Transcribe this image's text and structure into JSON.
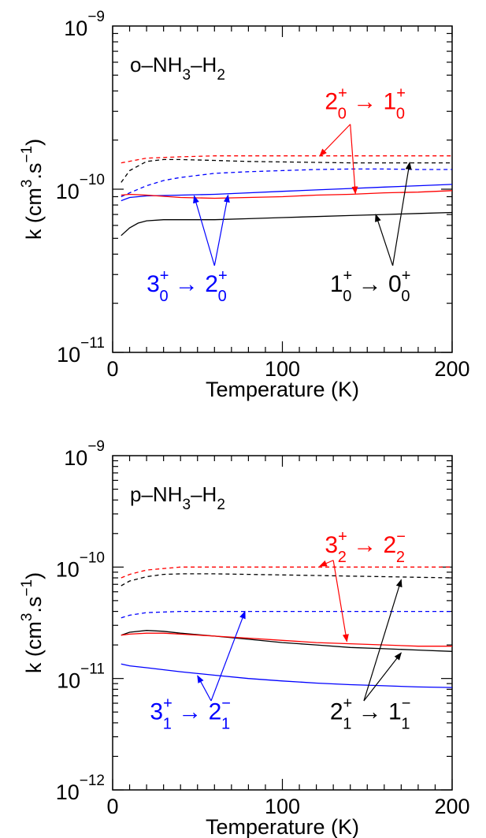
{
  "chart_data": [
    {
      "type": "line",
      "system_label": {
        "base": "o–NH",
        "sub1": "3",
        "mid": "–H",
        "sub2": "2"
      },
      "xlabel": "Temperature (K)",
      "ylabel": {
        "pre": "k (cm",
        "sup1": "3",
        "mid": ".s",
        "sup2": "−1",
        "post": ")"
      },
      "xlim": [
        0,
        200
      ],
      "ylim": [
        1e-11,
        1e-09
      ],
      "yscale": "log",
      "x_ticks": [
        {
          "v": 0,
          "label": "0"
        },
        {
          "v": 100,
          "label": "100"
        },
        {
          "v": 200,
          "label": "200"
        }
      ],
      "y_ticks": [
        {
          "v": 1e-11,
          "base": "10",
          "exp": "−11"
        },
        {
          "v": 1e-10,
          "base": "10",
          "exp": "−10"
        },
        {
          "v": 1e-09,
          "base": "10",
          "exp": "−9"
        }
      ],
      "series": [
        {
          "color": "#ff0000",
          "dash": true,
          "x": [
            5,
            20,
            40,
            60,
            80,
            100,
            120,
            140,
            160,
            180,
            200
          ],
          "y": [
            1.45e-10,
            1.55e-10,
            1.58e-10,
            1.6e-10,
            1.6e-10,
            1.6e-10,
            1.6e-10,
            1.6e-10,
            1.6e-10,
            1.6e-10,
            1.6e-10
          ]
        },
        {
          "color": "#000000",
          "dash": true,
          "x": [
            5,
            10,
            20,
            30,
            40,
            60,
            80,
            100,
            120,
            140,
            160,
            180,
            200
          ],
          "y": [
            1.1e-10,
            1.3e-10,
            1.48e-10,
            1.52e-10,
            1.52e-10,
            1.5e-10,
            1.48e-10,
            1.47e-10,
            1.46e-10,
            1.45e-10,
            1.45e-10,
            1.45e-10,
            1.45e-10
          ]
        },
        {
          "color": "#0000ff",
          "dash": true,
          "x": [
            5,
            10,
            20,
            30,
            40,
            60,
            80,
            100,
            120,
            140,
            160,
            180,
            200
          ],
          "y": [
            9e-11,
            9.5e-11,
            1.05e-10,
            1.13e-10,
            1.18e-10,
            1.25e-10,
            1.28e-10,
            1.3e-10,
            1.32e-10,
            1.33e-10,
            1.33e-10,
            1.32e-10,
            1.32e-10
          ]
        },
        {
          "color": "#0000ff",
          "dash": false,
          "x": [
            5,
            10,
            20,
            40,
            60,
            80,
            100,
            120,
            140,
            160,
            180,
            200
          ],
          "y": [
            8.5e-11,
            8.9e-11,
            9.1e-11,
            9.2e-11,
            9.3e-11,
            9.5e-11,
            9.7e-11,
            9.9e-11,
            1.01e-10,
            1.03e-10,
            1.05e-10,
            1.07e-10
          ]
        },
        {
          "color": "#ff0000",
          "dash": false,
          "x": [
            5,
            10,
            20,
            40,
            60,
            80,
            100,
            120,
            140,
            160,
            180,
            200
          ],
          "y": [
            9.2e-11,
            9.3e-11,
            9.2e-11,
            8.9e-11,
            8.8e-11,
            8.9e-11,
            9e-11,
            9.2e-11,
            9.3e-11,
            9.5e-11,
            9.6e-11,
            9.8e-11
          ]
        },
        {
          "color": "#000000",
          "dash": false,
          "x": [
            5,
            10,
            15,
            20,
            30,
            40,
            60,
            80,
            100,
            120,
            140,
            160,
            180,
            200
          ],
          "y": [
            5.2e-11,
            5.8e-11,
            6.2e-11,
            6.4e-11,
            6.5e-11,
            6.5e-11,
            6.5e-11,
            6.6e-11,
            6.7e-11,
            6.8e-11,
            6.9e-11,
            7e-11,
            7.1e-11,
            7.2e-11
          ]
        }
      ],
      "annotations": [
        {
          "color": "#ff0000",
          "base1": "2",
          "sup1": "+",
          "sub1": "0",
          "base2": "1",
          "sup2": "+",
          "sub2": "0",
          "pos": [
            125,
            3.1e-10
          ],
          "arrows": [
            {
              "from": [
                140,
                2.5e-10
              ],
              "to": [
                122,
                1.6e-10
              ]
            },
            {
              "from": [
                140,
                2.5e-10
              ],
              "to": [
                143,
                9.4e-11
              ]
            }
          ]
        },
        {
          "color": "#0000ff",
          "base1": "3",
          "sup1": "+",
          "sub1": "0",
          "base2": "2",
          "sup2": "+",
          "sub2": "0",
          "pos": [
            20,
            2.35e-11
          ],
          "arrows": [
            {
              "from": [
                60,
                3.4e-11
              ],
              "to": [
                48,
                9.1e-11
              ]
            },
            {
              "from": [
                60,
                3.4e-11
              ],
              "to": [
                68,
                9.2e-11
              ]
            }
          ]
        },
        {
          "color": "#000000",
          "base1": "1",
          "sup1": "+",
          "sub1": "0",
          "base2": "0",
          "sup2": "+",
          "sub2": "0",
          "pos": [
            128,
            2.35e-11
          ],
          "arrows": [
            {
              "from": [
                165,
                3.4e-11
              ],
              "to": [
                175,
                1.46e-10
              ]
            },
            {
              "from": [
                165,
                3.4e-11
              ],
              "to": [
                155,
                7e-11
              ]
            }
          ]
        }
      ]
    },
    {
      "type": "line",
      "system_label": {
        "base": "p–NH",
        "sub1": "3",
        "mid": "–H",
        "sub2": "2"
      },
      "xlabel": "Temperature (K)",
      "ylabel": {
        "pre": "k (cm",
        "sup1": "3",
        "mid": ".s",
        "sup2": "−1",
        "post": ")"
      },
      "xlim": [
        0,
        200
      ],
      "ylim": [
        1e-12,
        1e-09
      ],
      "yscale": "log",
      "x_ticks": [
        {
          "v": 0,
          "label": "0"
        },
        {
          "v": 100,
          "label": "100"
        },
        {
          "v": 200,
          "label": "200"
        }
      ],
      "y_ticks": [
        {
          "v": 1e-12,
          "base": "10",
          "exp": "−12"
        },
        {
          "v": 1e-11,
          "base": "10",
          "exp": "−11"
        },
        {
          "v": 1e-10,
          "base": "10",
          "exp": "−10"
        },
        {
          "v": 1e-09,
          "base": "10",
          "exp": "−9"
        }
      ],
      "series": [
        {
          "color": "#ff0000",
          "dash": true,
          "x": [
            5,
            10,
            20,
            40,
            60,
            80,
            100,
            120,
            140,
            160,
            180,
            200
          ],
          "y": [
            8e-11,
            8.6e-11,
            9.4e-11,
            1e-10,
            1e-10,
            1e-10,
            1e-10,
            1e-10,
            1e-10,
            1e-10,
            1e-10,
            1e-10
          ]
        },
        {
          "color": "#000000",
          "dash": true,
          "x": [
            5,
            10,
            20,
            30,
            40,
            60,
            80,
            100,
            120,
            140,
            160,
            180,
            200
          ],
          "y": [
            6.8e-11,
            7.5e-11,
            8.2e-11,
            8.6e-11,
            8.7e-11,
            8.7e-11,
            8.6e-11,
            8.5e-11,
            8.4e-11,
            8.3e-11,
            8.2e-11,
            8.1e-11,
            8e-11
          ]
        },
        {
          "color": "#0000ff",
          "dash": true,
          "x": [
            5,
            10,
            20,
            40,
            60,
            80,
            100,
            120,
            140,
            160,
            180,
            200
          ],
          "y": [
            3.5e-11,
            3.7e-11,
            3.9e-11,
            4e-11,
            4e-11,
            4e-11,
            4e-11,
            4e-11,
            4e-11,
            4e-11,
            4e-11,
            4e-11
          ]
        },
        {
          "color": "#000000",
          "dash": false,
          "x": [
            5,
            10,
            20,
            30,
            40,
            60,
            80,
            100,
            120,
            140,
            160,
            180,
            200
          ],
          "y": [
            2.45e-11,
            2.6e-11,
            2.7e-11,
            2.65e-11,
            2.55e-11,
            2.4e-11,
            2.25e-11,
            2.1e-11,
            2e-11,
            1.9e-11,
            1.85e-11,
            1.8e-11,
            1.75e-11
          ]
        },
        {
          "color": "#ff0000",
          "dash": false,
          "x": [
            5,
            10,
            20,
            30,
            40,
            60,
            80,
            100,
            120,
            140,
            160,
            180,
            200
          ],
          "y": [
            2.45e-11,
            2.5e-11,
            2.55e-11,
            2.55e-11,
            2.5e-11,
            2.4e-11,
            2.3e-11,
            2.2e-11,
            2.1e-11,
            2.05e-11,
            2e-11,
            1.95e-11,
            1.95e-11
          ]
        },
        {
          "color": "#0000ff",
          "dash": false,
          "x": [
            5,
            10,
            20,
            40,
            60,
            80,
            100,
            120,
            140,
            160,
            180,
            200
          ],
          "y": [
            1.35e-11,
            1.3e-11,
            1.25e-11,
            1.15e-11,
            1.07e-11,
            1e-11,
            9.5e-12,
            9.1e-12,
            8.8e-12,
            8.6e-12,
            8.4e-12,
            8.3e-12
          ]
        }
      ],
      "annotations": [
        {
          "color": "#ff0000",
          "base1": "3",
          "sup1": "+",
          "sub1": "2",
          "base2": "2",
          "sup2": "−",
          "sub2": "2",
          "pos": [
            125,
            1.35e-10
          ],
          "arrows": [
            {
              "from": [
                130,
                1.15e-10
              ],
              "to": [
                122,
                1.02e-10
              ]
            },
            {
              "from": [
                130,
                1.15e-10
              ],
              "to": [
                138,
                2.15e-11
              ]
            }
          ]
        },
        {
          "color": "#0000ff",
          "base1": "3",
          "sup1": "+",
          "sub1": "1",
          "base2": "2",
          "sup2": "−",
          "sub2": "1",
          "pos": [
            22,
            4.3e-12
          ],
          "arrows": [
            {
              "from": [
                58,
                6.3e-12
              ],
              "to": [
                50,
                1.06e-11
              ]
            },
            {
              "from": [
                58,
                6.3e-12
              ],
              "to": [
                78,
                4e-11
              ]
            }
          ]
        },
        {
          "color": "#000000",
          "base1": "2",
          "sup1": "+",
          "sub1": "1",
          "base2": "1",
          "sup2": "−",
          "sub2": "1",
          "pos": [
            128,
            4.3e-12
          ],
          "arrows": [
            {
              "from": [
                148,
                6.3e-12
              ],
              "to": [
                170,
                7.7e-11
              ]
            },
            {
              "from": [
                148,
                6.3e-12
              ],
              "to": [
                170,
                1.7e-11
              ]
            }
          ]
        }
      ]
    }
  ]
}
